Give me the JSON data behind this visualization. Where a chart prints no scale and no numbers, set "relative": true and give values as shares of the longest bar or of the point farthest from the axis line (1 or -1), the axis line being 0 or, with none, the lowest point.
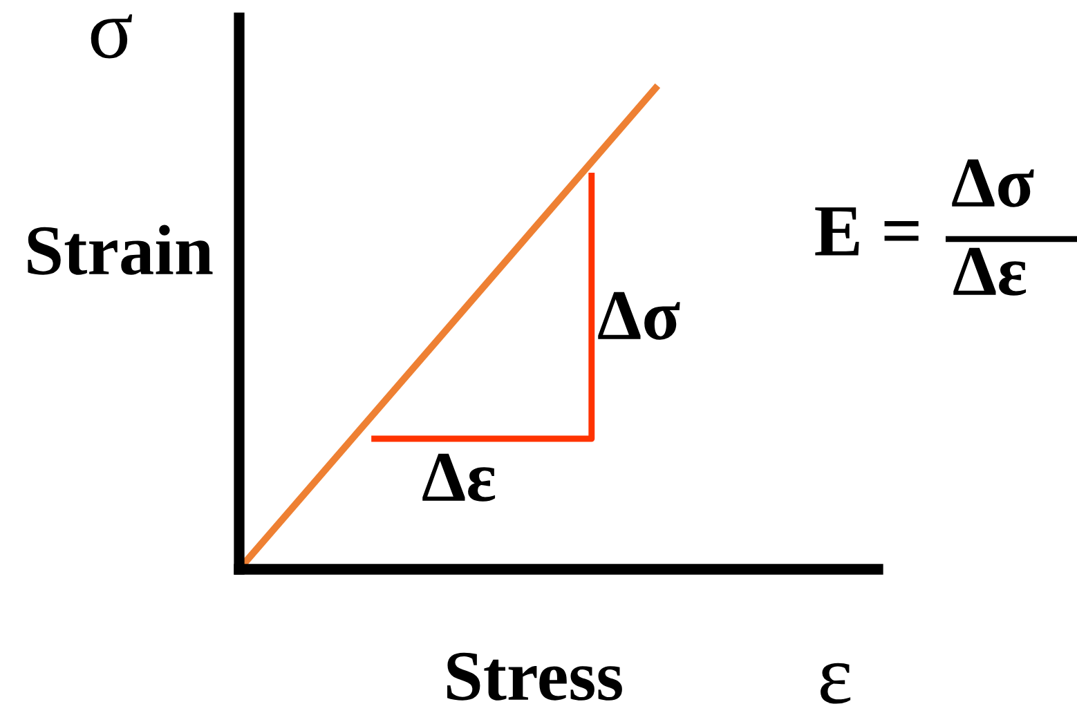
{
  "chart_data": {
    "type": "line",
    "relative": true,
    "xlabel": "Stress",
    "ylabel": "Strain",
    "categories": [
      null,
      null,
      null,
      null,
      null,
      null,
      null,
      null,
      null,
      null,
      null,
      null,
      null,
      null,
      null,
      null,
      null,
      null,
      null,
      null,
      null,
      null,
      null,
      null,
      null,
      null,
      null,
      null,
      null,
      null
    ],
    "series": [
      {
        "color": "#ee8033",
        "values": [
          0,
          null,
          null,
          null,
          null,
          null,
          null,
          null,
          null,
          null,
          null,
          null,
          null,
          null,
          null,
          null,
          null,
          null,
          null,
          1,
          null,
          null,
          null,
          null,
          null,
          null,
          null,
          null,
          null,
          null
        ]
      },
      {
        "type": "step",
        "color": "#ff3300",
        "values": [
          null,
          null,
          null,
          null,
          null,
          null,
          0.27,
          null,
          null,
          null,
          null,
          null,
          null,
          null,
          null,
          null,
          0.82,
          null,
          null,
          null,
          null,
          null,
          null,
          null,
          null,
          null,
          null,
          null,
          null,
          null
        ]
      }
    ],
    "annotations": [
      "σ",
      "ε",
      "Δσ",
      "Δε",
      "E =",
      "Δσ",
      "Δε"
    ]
  }
}
